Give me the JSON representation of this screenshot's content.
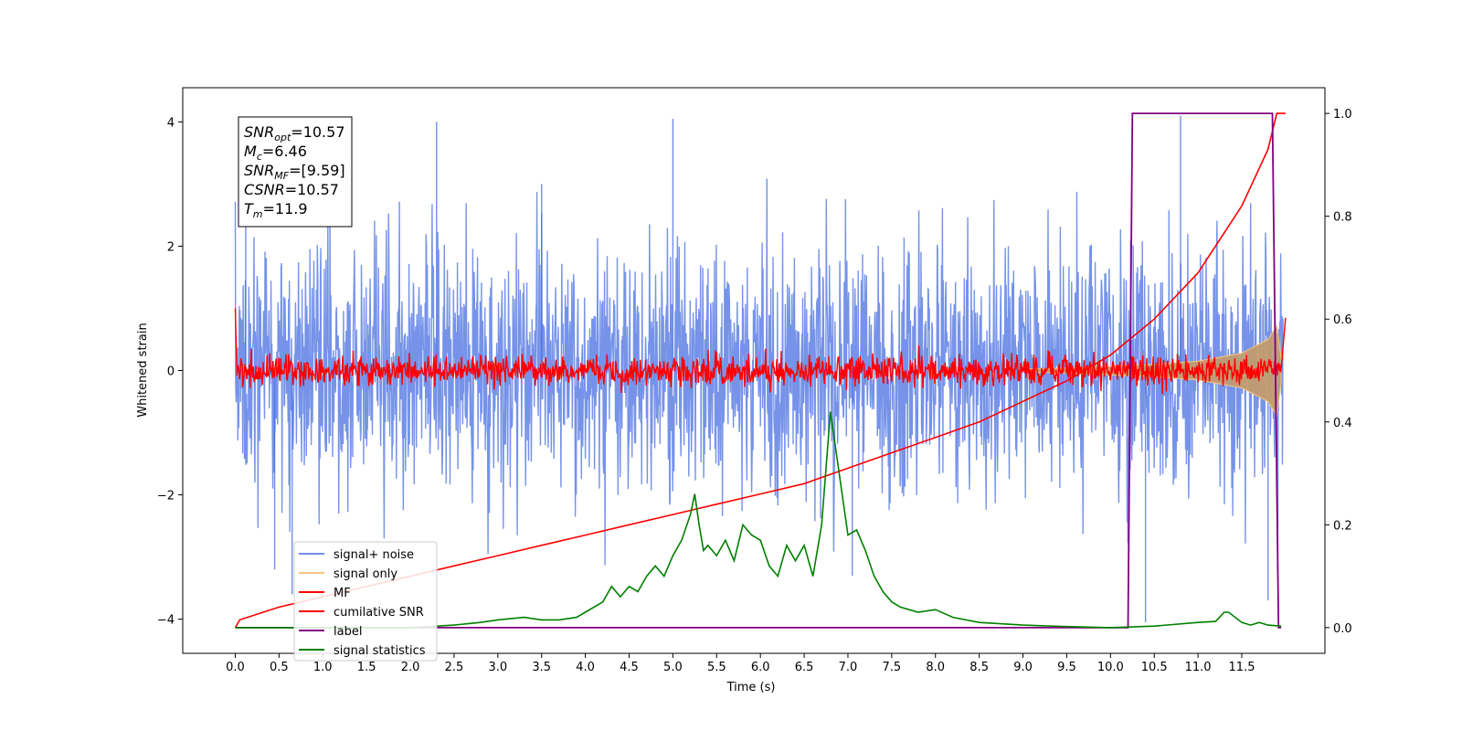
{
  "chart_data": {
    "type": "line",
    "xlabel": "Time (s)",
    "ylabel": "Whitened strain",
    "xlim": [
      -0.6,
      12.45
    ],
    "ylim": [
      -4.55,
      4.55
    ],
    "y2lim": [
      -0.05,
      1.05
    ],
    "x_ticks": [
      "0.0",
      "0.5",
      "1.0",
      "1.5",
      "2.0",
      "2.5",
      "3.0",
      "3.5",
      "4.0",
      "4.5",
      "5.0",
      "5.5",
      "6.0",
      "6.5",
      "7.0",
      "7.5",
      "8.0",
      "8.5",
      "9.0",
      "9.5",
      "10.0",
      "10.5",
      "11.0",
      "11.5"
    ],
    "y_ticks": [
      "4",
      "2",
      "0",
      "−2",
      "−4"
    ],
    "y2_ticks": [
      "1.0",
      "0.8",
      "0.6",
      "0.4",
      "0.2",
      "0.0"
    ],
    "grid": false,
    "legend_position": "lower-left",
    "info_box": {
      "lines": [
        {
          "var": "SNR",
          "sub": "opt",
          "value": "=10.57"
        },
        {
          "var": "M",
          "sub": "c",
          "value": "=6.46"
        },
        {
          "var": "SNR",
          "sub": "MF",
          "value": "=[9.59]"
        },
        {
          "var": "CSNR",
          "sub": "",
          "value": "=10.57"
        },
        {
          "var": "T",
          "sub": "m",
          "value": "=11.9"
        }
      ]
    },
    "series": [
      {
        "name": "signal+ noise",
        "color": "#4169e1",
        "axis": "left",
        "description_only": false,
        "envelope_x": [
          0,
          1,
          2,
          3,
          4,
          5,
          6,
          7,
          8,
          9,
          10,
          11,
          12
        ],
        "envelope_abs": 2.6,
        "spikes": [
          [
            0.12,
            2.5
          ],
          [
            0.45,
            -3.2
          ],
          [
            2.3,
            4.0
          ],
          [
            5.0,
            4.05
          ],
          [
            10.8,
            4.1
          ],
          [
            10.4,
            -4.05
          ],
          [
            11.8,
            -3.7
          ],
          [
            0.65,
            -3.6
          ],
          [
            3.5,
            3.0
          ],
          [
            7.05,
            -3.3
          ]
        ]
      },
      {
        "name": "signal only",
        "color": "#f5c77e",
        "axis": "left",
        "chirp_amplitude_x": [
          9.0,
          9.5,
          10.0,
          10.5,
          11.0,
          11.5,
          11.8,
          11.9,
          11.95
        ],
        "chirp_amplitude_y": [
          0.02,
          0.04,
          0.07,
          0.1,
          0.15,
          0.28,
          0.5,
          0.72,
          0.2
        ]
      },
      {
        "name": "MF",
        "color": "#ff0000",
        "axis": "left",
        "centre": 0.0,
        "spread": 0.12,
        "start_value": 1.0
      },
      {
        "name": "cumilative SNR",
        "color": "#ff0000",
        "axis": "right",
        "x": [
          0.0,
          0.05,
          0.5,
          1.0,
          1.5,
          2.0,
          2.5,
          3.0,
          3.5,
          4.0,
          4.5,
          5.0,
          5.5,
          6.0,
          6.5,
          7.0,
          7.5,
          8.0,
          8.5,
          9.0,
          9.5,
          10.0,
          10.5,
          11.0,
          11.5,
          11.8,
          11.9,
          12.0
        ],
        "y": [
          0.0,
          0.015,
          0.04,
          0.06,
          0.08,
          0.1,
          0.12,
          0.14,
          0.16,
          0.18,
          0.2,
          0.22,
          0.24,
          0.26,
          0.28,
          0.31,
          0.34,
          0.37,
          0.4,
          0.44,
          0.48,
          0.53,
          0.6,
          0.69,
          0.82,
          0.93,
          1.0,
          1.0
        ]
      },
      {
        "name": "label",
        "color": "#800080",
        "axis": "right",
        "x": [
          0.0,
          10.2,
          10.25,
          11.85,
          11.92,
          11.95
        ],
        "y": [
          0.0,
          0.0,
          1.0,
          1.0,
          0.0,
          0.0
        ]
      },
      {
        "name": "signal statistics",
        "color": "#008000",
        "axis": "right",
        "x": [
          0.0,
          1.0,
          2.0,
          2.5,
          2.8,
          3.0,
          3.3,
          3.5,
          3.7,
          3.9,
          4.0,
          4.2,
          4.3,
          4.4,
          4.5,
          4.6,
          4.7,
          4.8,
          4.9,
          5.0,
          5.1,
          5.2,
          5.25,
          5.3,
          5.35,
          5.4,
          5.5,
          5.6,
          5.7,
          5.8,
          5.9,
          6.0,
          6.1,
          6.2,
          6.3,
          6.4,
          6.5,
          6.6,
          6.7,
          6.8,
          6.9,
          7.0,
          7.1,
          7.2,
          7.3,
          7.4,
          7.5,
          7.6,
          7.8,
          8.0,
          8.2,
          8.5,
          9.0,
          9.5,
          10.0,
          10.5,
          11.0,
          11.2,
          11.3,
          11.35,
          11.5,
          11.6,
          11.7,
          11.8,
          11.95
        ],
        "y": [
          0.0,
          0.0,
          0.0,
          0.005,
          0.01,
          0.015,
          0.02,
          0.015,
          0.015,
          0.02,
          0.03,
          0.05,
          0.08,
          0.06,
          0.08,
          0.07,
          0.1,
          0.12,
          0.1,
          0.14,
          0.17,
          0.22,
          0.26,
          0.2,
          0.15,
          0.16,
          0.14,
          0.17,
          0.13,
          0.2,
          0.18,
          0.17,
          0.12,
          0.1,
          0.16,
          0.13,
          0.16,
          0.1,
          0.2,
          0.42,
          0.3,
          0.18,
          0.19,
          0.15,
          0.1,
          0.07,
          0.05,
          0.04,
          0.03,
          0.035,
          0.02,
          0.01,
          0.005,
          0.002,
          0.0,
          0.003,
          0.01,
          0.012,
          0.03,
          0.03,
          0.01,
          0.005,
          0.01,
          0.005,
          0.003
        ]
      }
    ]
  },
  "colors": {
    "signal_noise": "#4169e1",
    "signal_only": "#f5c77e",
    "signal_fill": "#c29b6f",
    "mf": "#ff0000",
    "cumulative": "#ff0000",
    "label": "#800080",
    "statistics": "#008000"
  }
}
